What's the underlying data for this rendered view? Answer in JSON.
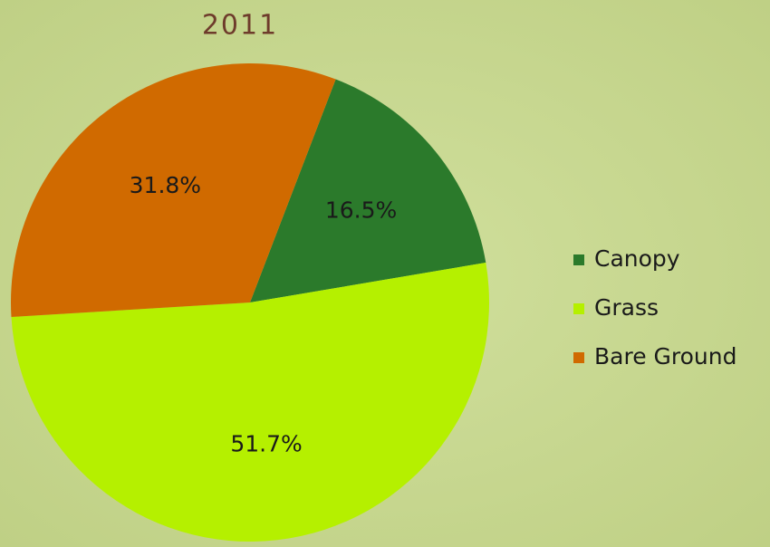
{
  "chart_data": {
    "type": "pie",
    "title": "2011",
    "categories": [
      "Canopy",
      "Grass",
      "Bare Ground"
    ],
    "values": [
      16.5,
      51.7,
      31.8
    ],
    "value_labels": [
      "16.5%",
      "51.7%",
      "31.8%"
    ],
    "colors": [
      "#2b7a2b",
      "#b5f000",
      "#d06a00"
    ],
    "legend": "right"
  }
}
